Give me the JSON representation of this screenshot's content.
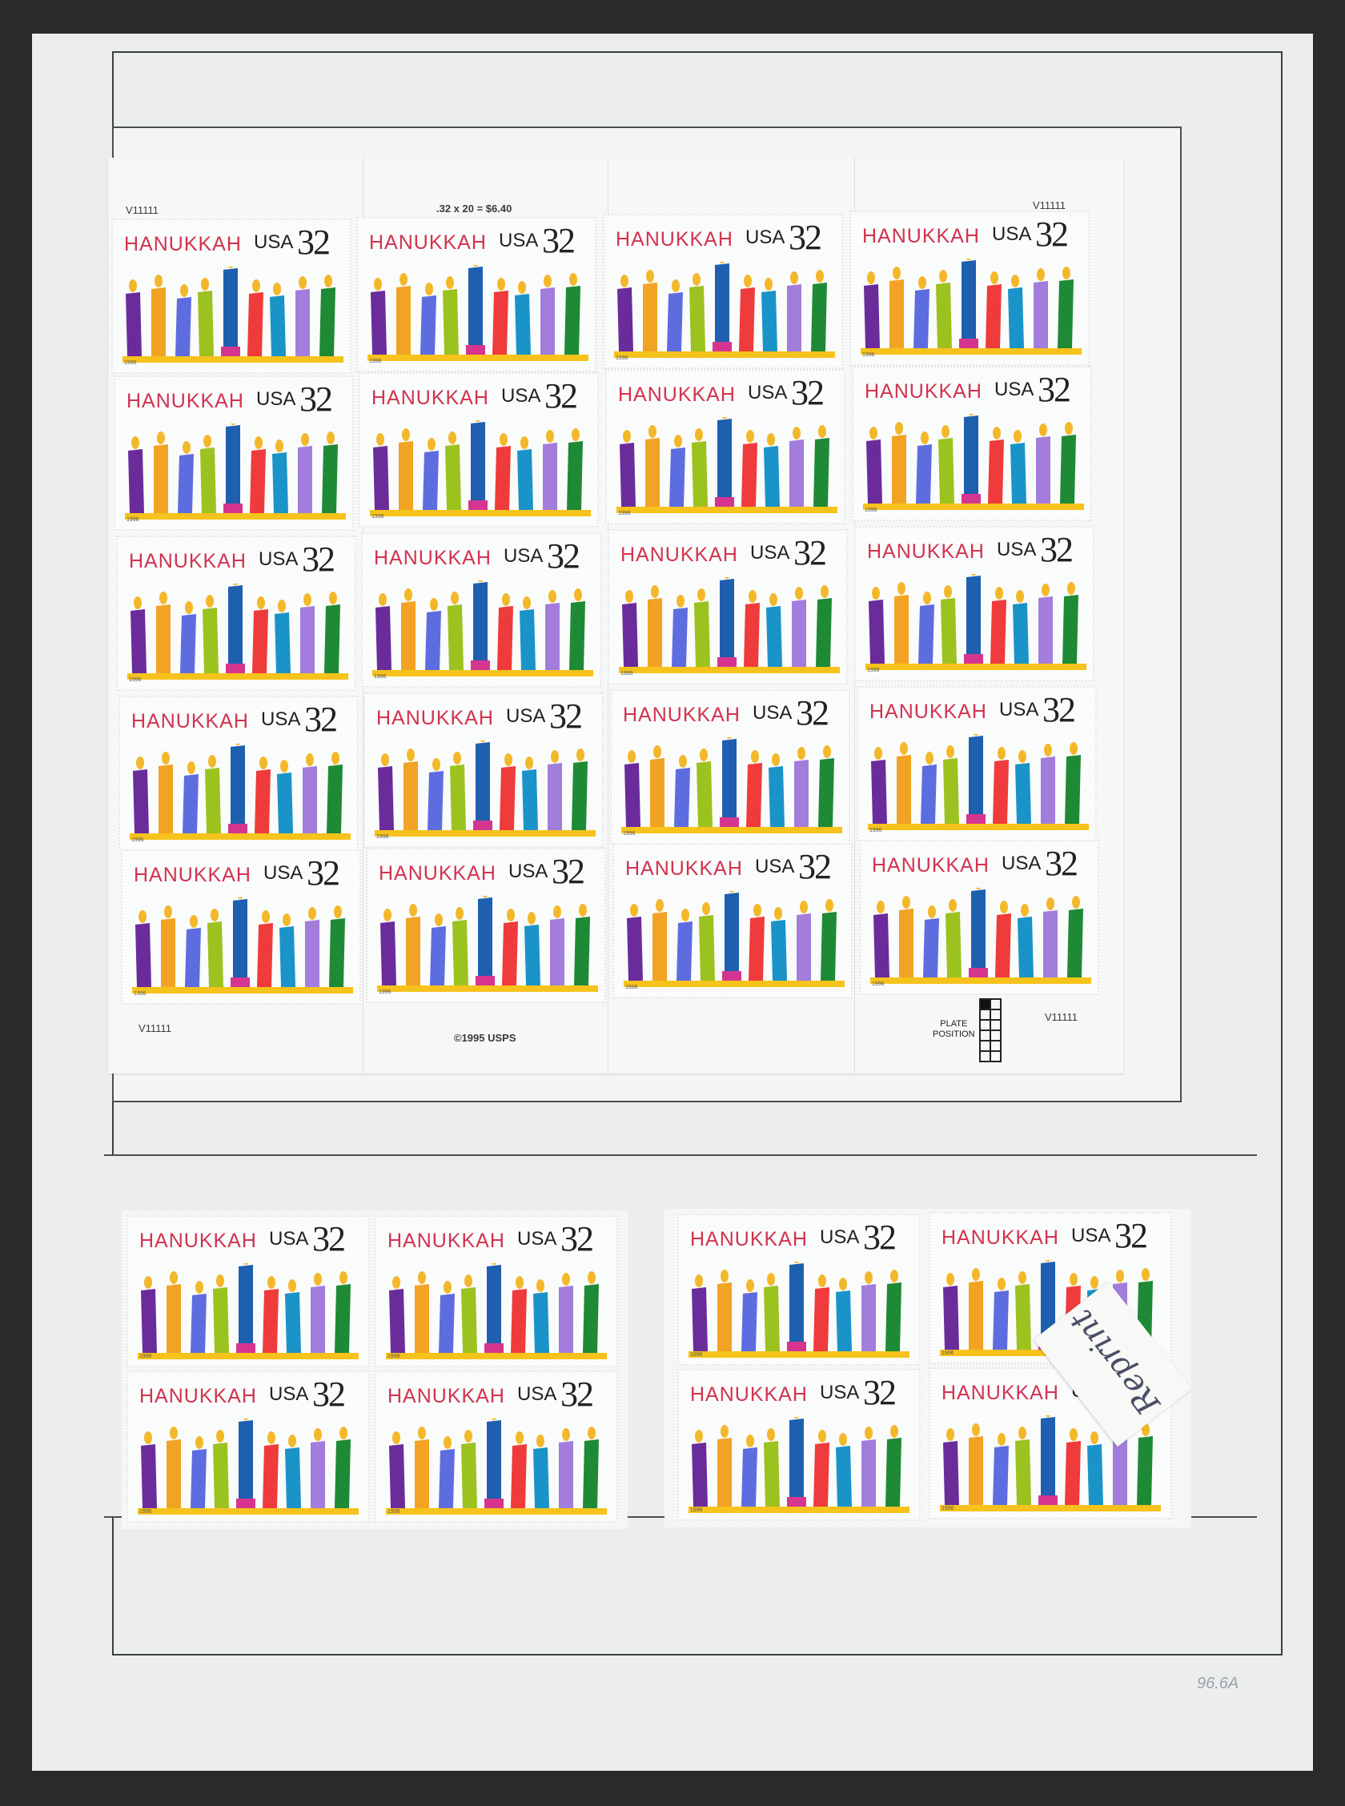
{
  "sheet": {
    "price_label": ".32 x 20 = $6.40",
    "copyright": "©1995 USPS",
    "plate_label_line1": "PLATE",
    "plate_label_line2": "POSITION",
    "plate_numbers": "V11111"
  },
  "stamp": {
    "title": "HANUKKAH",
    "country": "USA",
    "value": "32",
    "year": "1996",
    "candle_colors": [
      "#6b2c9b",
      "#f2a324",
      "#5d6de0",
      "#9cc21f",
      "#1f5fb0",
      "#ef3b3b",
      "#1a94c8",
      "#a27ddc",
      "#1e8a35"
    ],
    "base_color": "#f6c21c",
    "shamash_holder_color": "#d6358f",
    "flame_color": "#f3b82a"
  },
  "annotation": {
    "reprint_note": "Reprint"
  },
  "page_number": "96.6A"
}
